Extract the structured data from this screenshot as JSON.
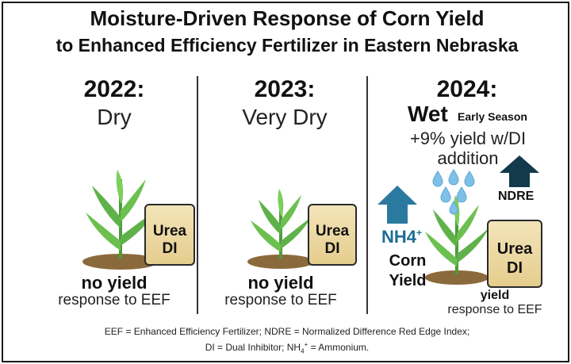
{
  "title": {
    "line1": "Moisture-Driven Response of Corn Yield",
    "line2": "to Enhanced Efficiency Fertilizer in Eastern Nebraska"
  },
  "panels": [
    {
      "year": "2022:",
      "condition": "Dry",
      "result_bold": "no yield",
      "result_text": "response to EEF",
      "bag_line1": "Urea",
      "bag_line2": "DI"
    },
    {
      "year": "2023:",
      "condition": "Very Dry",
      "result_bold": "no yield",
      "result_text": "response to EEF",
      "bag_line1": "Urea",
      "bag_line2": "DI"
    },
    {
      "year": "2024:",
      "condition": "Wet",
      "condition_note": "Early Season",
      "effect_line1": "+9% yield w/DI",
      "effect_line2": "addition",
      "result_bold": "yield",
      "result_text": "response to EEF",
      "bag_line1": "Urea",
      "bag_line2": "DI",
      "nh4_label": "NH4",
      "nh4_sup": "+",
      "corn_label": "Corn",
      "yield_label": "Yield",
      "ndre_label": "NDRE"
    }
  ],
  "footnote": {
    "line1": "EEF = Enhanced Efficiency Fertilizer; NDRE = Normalized Difference Red Edge Index;",
    "line2a": "DI = Dual Inhibitor; NH",
    "line2_sub": "4",
    "line2_sup": "+",
    "line2b": " = Ammonium."
  },
  "colors": {
    "nh4_arrow": "#2a7aa0",
    "ndre_arrow": "#123a4a",
    "plant_leaf": "#5fb24a",
    "soil": "#8a6a3c",
    "droplet": "#7fc0e6",
    "bag_fill": "#ecd9a2"
  },
  "icons": [
    "corn-plant-icon",
    "fertilizer-bag-icon",
    "water-droplet-icon",
    "up-arrow-icon"
  ]
}
